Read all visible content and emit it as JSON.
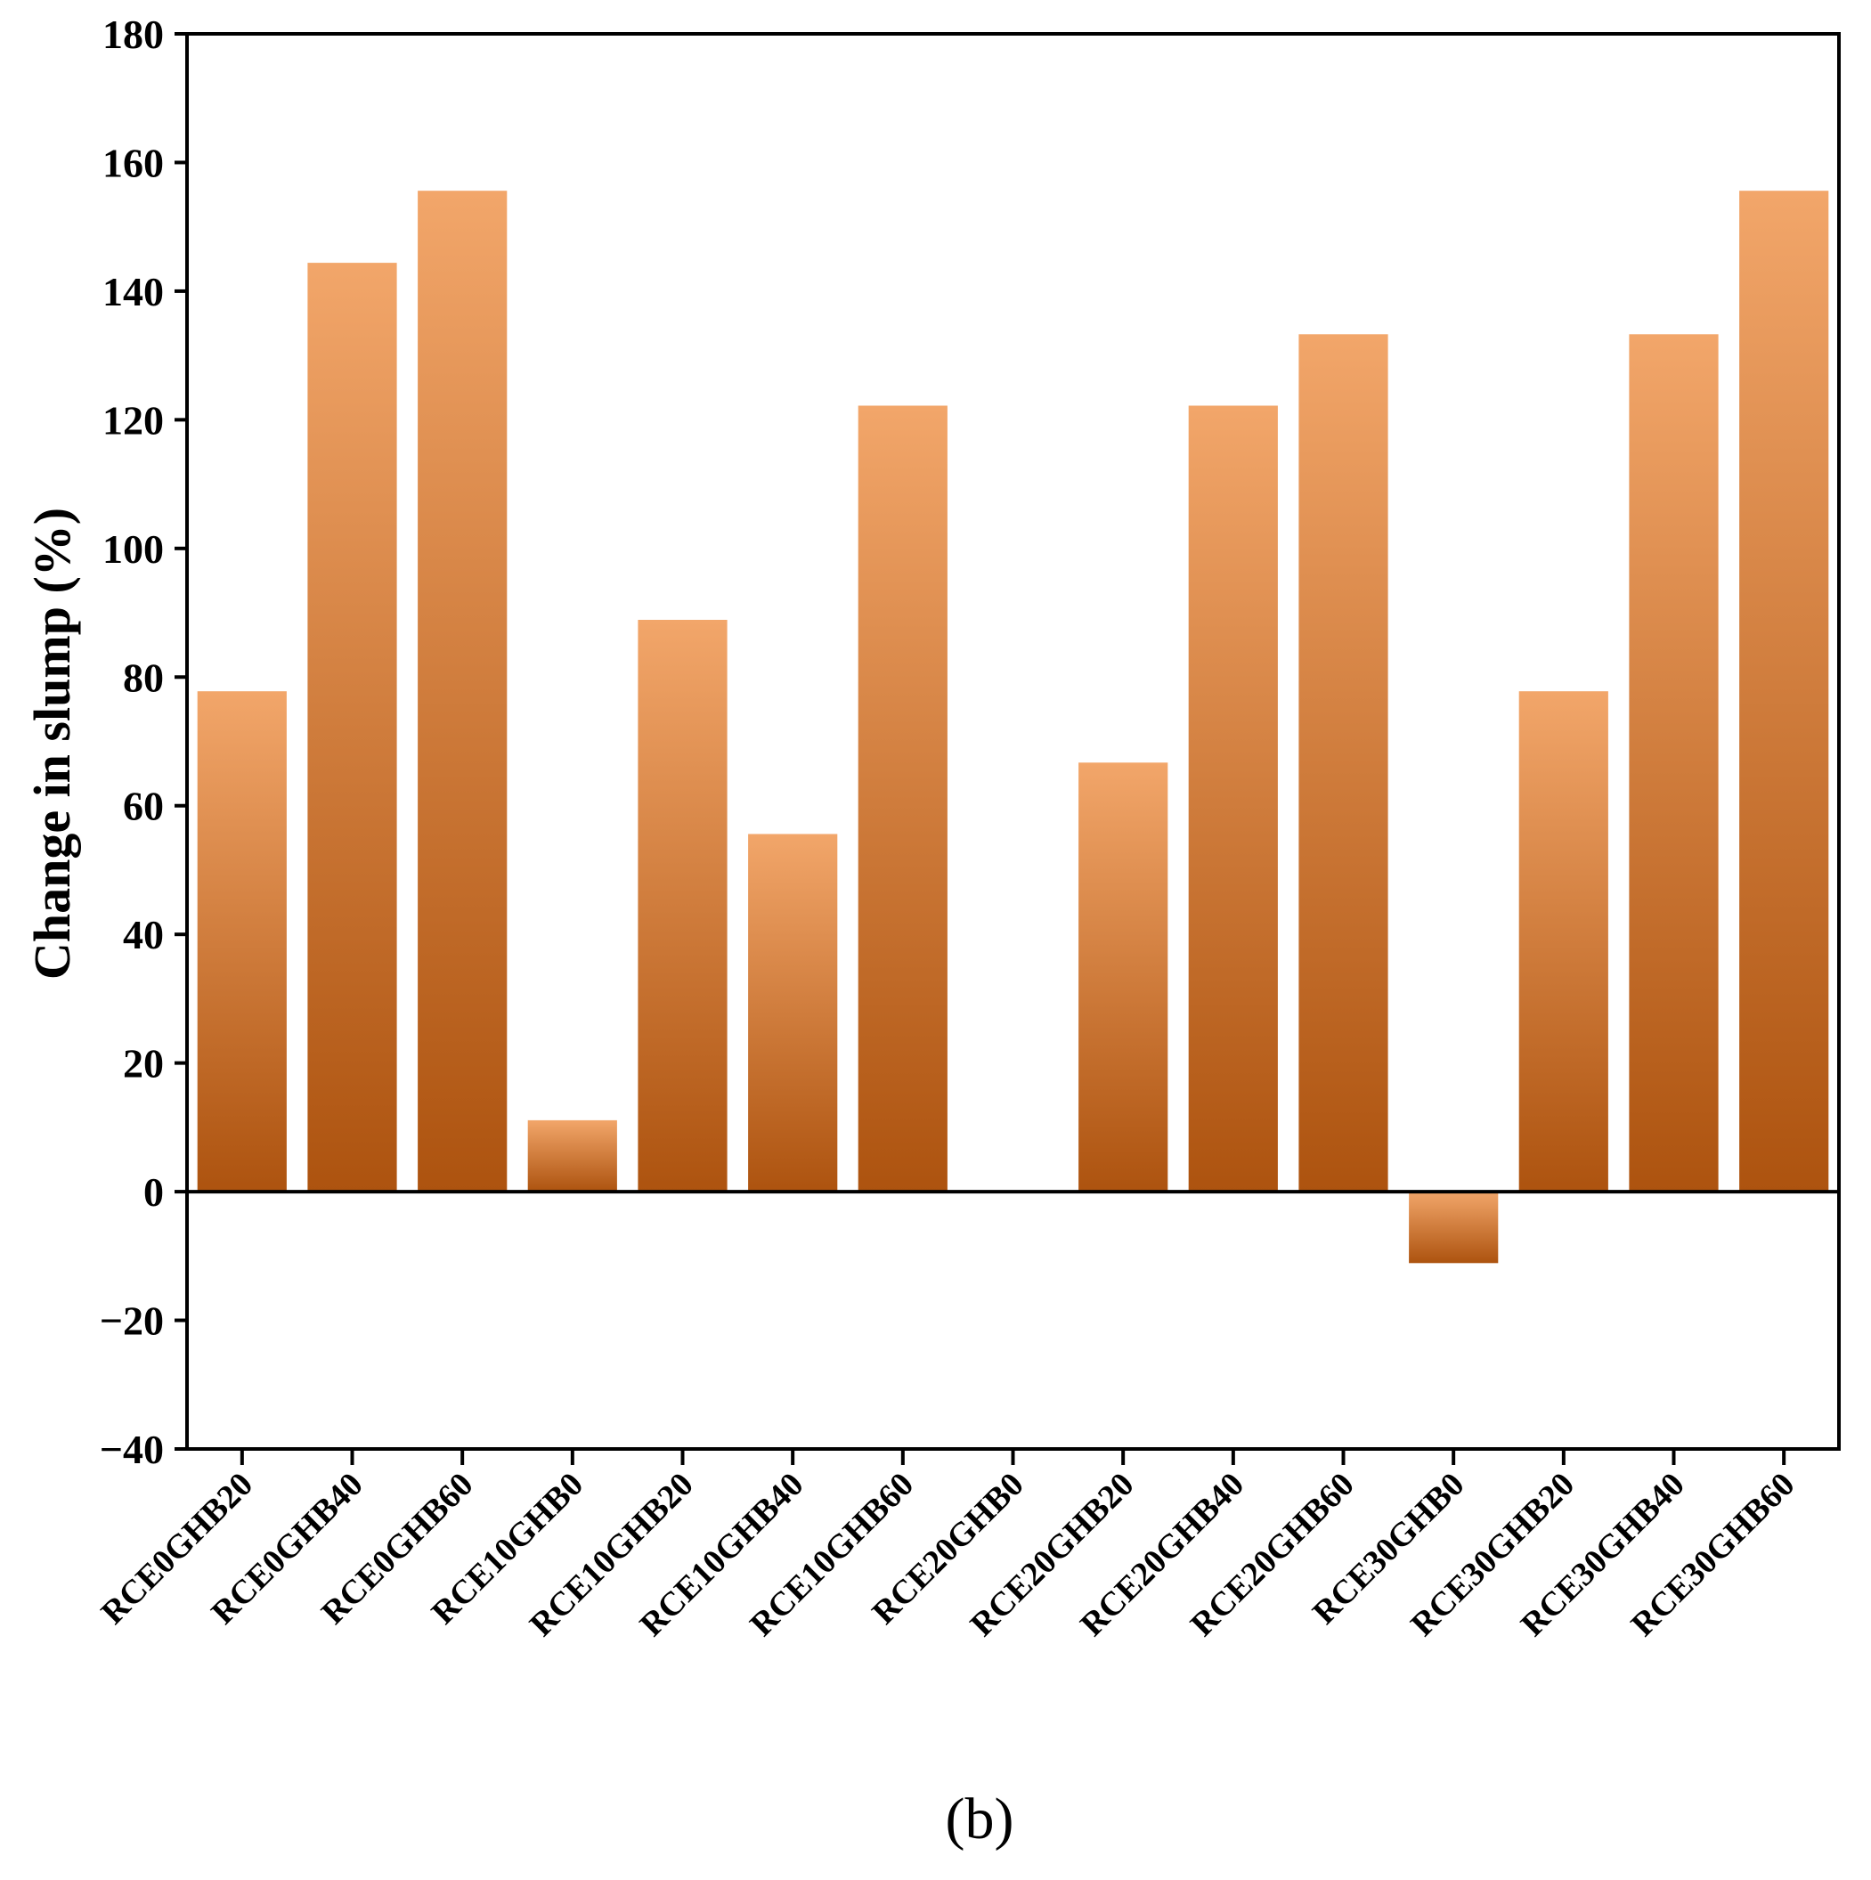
{
  "chart_data": {
    "type": "bar",
    "title": "",
    "xlabel": "",
    "ylabel": "Change in slump (%)",
    "panel_label": "(b)",
    "ylim": [
      -40,
      180
    ],
    "yticks": [
      -40,
      -20,
      0,
      20,
      40,
      60,
      80,
      100,
      120,
      140,
      160,
      180
    ],
    "ytick_labels": [
      "−40",
      "−20",
      "0",
      "20",
      "40",
      "60",
      "80",
      "100",
      "120",
      "140",
      "160",
      "180"
    ],
    "categories": [
      "RCE0GHB20",
      "RCE0GHB40",
      "RCE0GHB60",
      "RCE10GHB0",
      "RCE10GHB20",
      "RCE10GHB40",
      "RCE10GHB60",
      "RCE20GHB0",
      "RCE20GHB20",
      "RCE20GHB40",
      "RCE20GHB60",
      "RCE30GHB0",
      "RCE30GHB20",
      "RCE30GHB40",
      "RCE30GHB60"
    ],
    "values": [
      77.8,
      144.4,
      155.6,
      11.1,
      88.9,
      55.6,
      122.2,
      0,
      66.7,
      122.2,
      133.3,
      -11.1,
      77.8,
      133.3,
      155.6
    ],
    "colors": {
      "bar_light": "#F2A66A",
      "bar_dark": "#AD530F"
    },
    "grid": false
  }
}
